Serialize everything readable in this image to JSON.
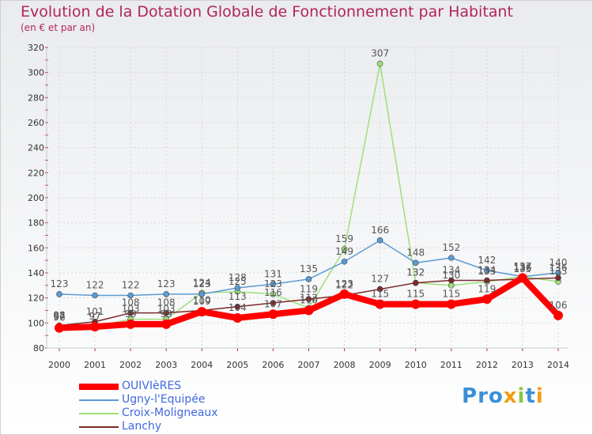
{
  "title": "Evolution de la Dotation Globale de Fonctionnement par Habitant",
  "subtitle": "(en € et par an)",
  "logo_text": "Proxiti",
  "chart_data": {
    "type": "line",
    "title": "Evolution de la Dotation Globale de Fonctionnement par Habitant",
    "subtitle": "(en € et par an)",
    "xlabel": "",
    "ylabel": "",
    "x": [
      "2000",
      "2001",
      "2002",
      "2003",
      "2004",
      "2005",
      "2006",
      "2007",
      "2008",
      "2009",
      "2010",
      "2011",
      "2012",
      "2013",
      "2014"
    ],
    "ylim": [
      80,
      320
    ],
    "yticks": [
      80,
      100,
      120,
      140,
      160,
      180,
      200,
      220,
      240,
      260,
      280,
      300,
      320
    ],
    "grid": true,
    "legend_position": "bottom-left",
    "series": [
      {
        "name": "OUIVIèRES",
        "color": "#ff0000",
        "values": [
          96,
          97,
          99,
          99,
          109,
          104,
          107,
          110,
          123,
          115,
          115,
          115,
          119,
          136,
          106
        ]
      },
      {
        "name": "Ugny-l'Equipée",
        "color": "#5a9bd4",
        "values": [
          123,
          122,
          122,
          123,
          123,
          128,
          131,
          135,
          149,
          166,
          148,
          152,
          142,
          137,
          140
        ]
      },
      {
        "name": "Croix-Moligneaux",
        "color": "#9de07a",
        "values": [
          97,
          97,
          103,
          103,
          124,
          125,
          123,
          112,
          159,
          307,
          132,
          130,
          133,
          137,
          133
        ]
      },
      {
        "name": "Lanchy",
        "color": "#7b2a2a",
        "values": [
          98,
          101,
          108,
          108,
          110,
          113,
          116,
          119,
          122,
          127,
          132,
          134,
          134,
          135,
          136
        ]
      }
    ]
  }
}
